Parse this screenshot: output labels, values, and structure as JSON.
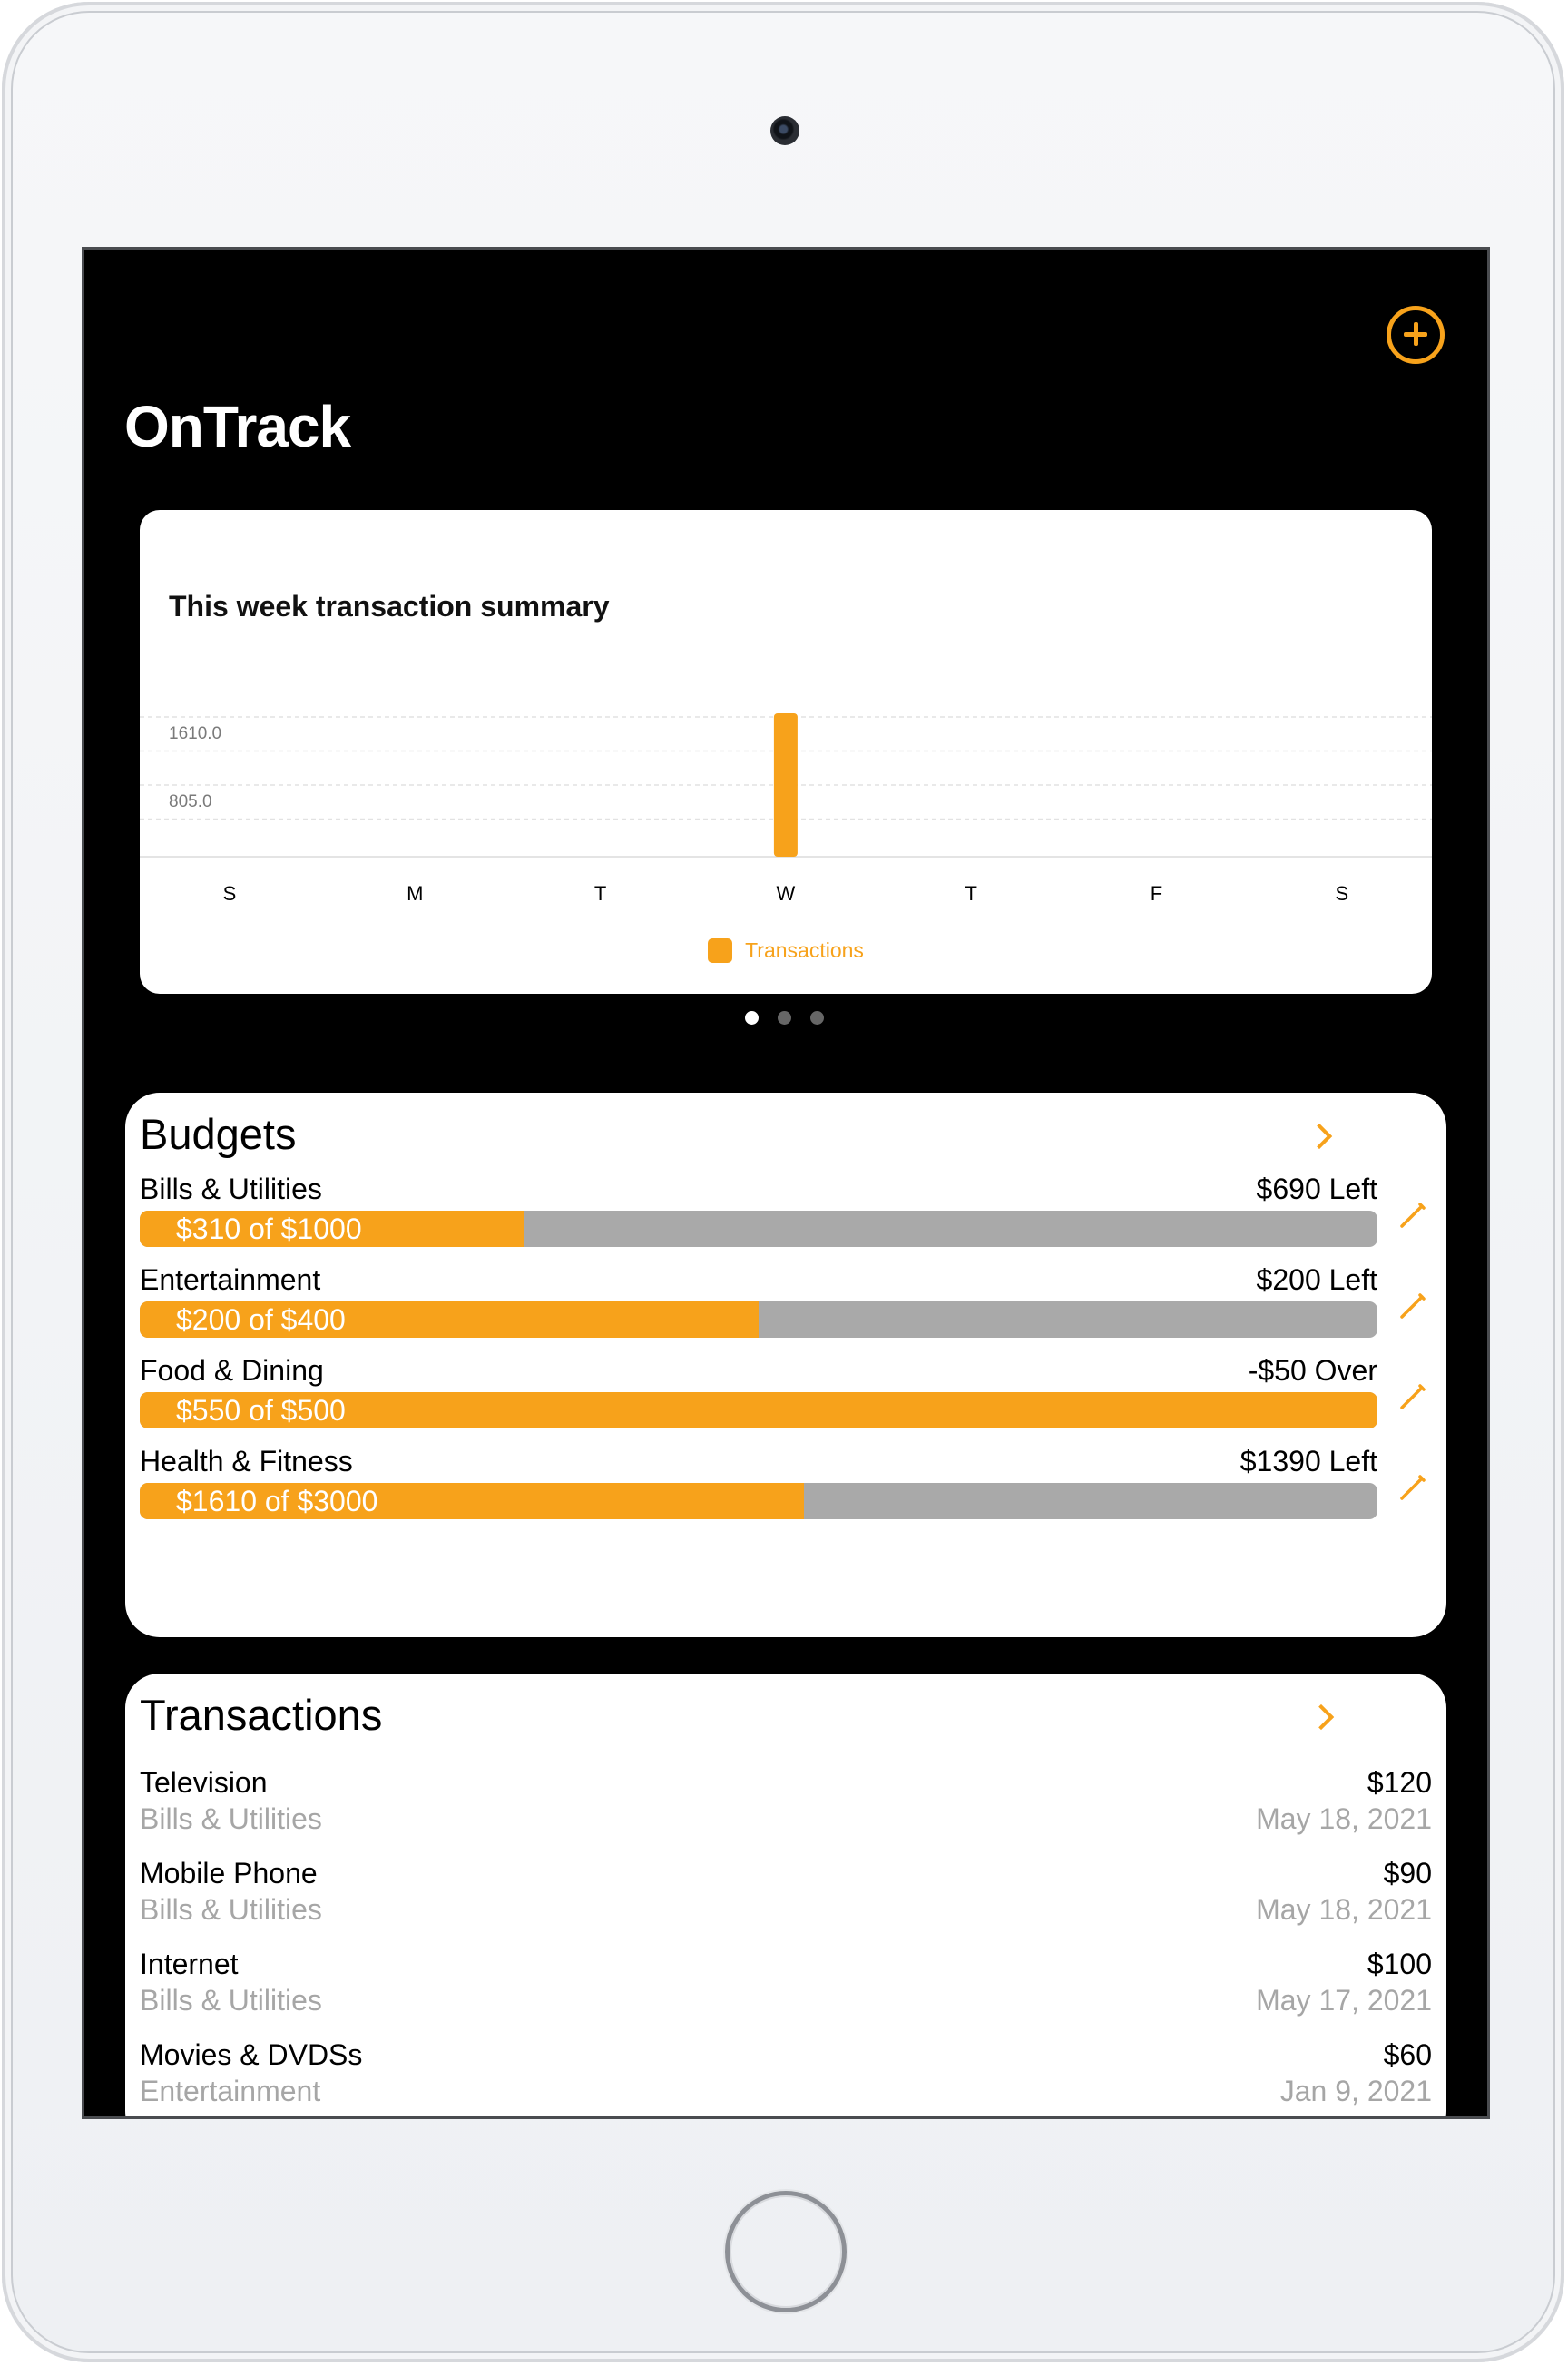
{
  "app": {
    "title": "OnTrack",
    "add_button_label": "add"
  },
  "chart_card": {
    "title": "This week transaction summary",
    "legend": "Transactions"
  },
  "chart_data": {
    "type": "bar",
    "title": "This week transaction summary",
    "categories": [
      "S",
      "M",
      "T",
      "W",
      "T",
      "F",
      "S"
    ],
    "series": [
      {
        "name": "Transactions",
        "values": [
          0,
          0,
          0,
          1610,
          0,
          0,
          0
        ]
      }
    ],
    "yticks": [
      805.0,
      1610.0
    ],
    "ytick_labels": [
      "805.0",
      "1610.0"
    ],
    "ylim": [
      0,
      1610
    ],
    "grid": true,
    "legend": "bottom-center",
    "color": "#f7a21b"
  },
  "pager": {
    "pages": 3,
    "current": 0
  },
  "budgets": {
    "title": "Budgets",
    "items": [
      {
        "name": "Bills & Utilities",
        "left": "$690 Left",
        "amount": "$310 of $1000",
        "spent": 310,
        "limit": 1000
      },
      {
        "name": "Entertainment",
        "left": "$200 Left",
        "amount": "$200 of $400",
        "spent": 200,
        "limit": 400
      },
      {
        "name": "Food & Dining",
        "left": "-$50 Over",
        "amount": "$550 of $500",
        "spent": 550,
        "limit": 500
      },
      {
        "name": "Health & Fitness",
        "left": "$1390 Left",
        "amount": "$1610 of $3000",
        "spent": 1610,
        "limit": 3000
      }
    ]
  },
  "transactions": {
    "title": "Transactions",
    "items": [
      {
        "name": "Television",
        "category": "Bills & Utilities",
        "amount": "$120",
        "date": "May 18, 2021"
      },
      {
        "name": "Mobile Phone",
        "category": "Bills & Utilities",
        "amount": "$90",
        "date": "May 18, 2021"
      },
      {
        "name": "Internet",
        "category": "Bills & Utilities",
        "amount": "$100",
        "date": "May 17, 2021"
      },
      {
        "name": "Movies & DVDSs",
        "category": "Entertainment",
        "amount": "$60",
        "date": "Jan 9, 2021"
      }
    ]
  },
  "colors": {
    "accent": "#f7a21b",
    "bar_track": "#a9a9a9",
    "secondary_text": "#a6a6a6",
    "screen_bg": "#000000"
  }
}
